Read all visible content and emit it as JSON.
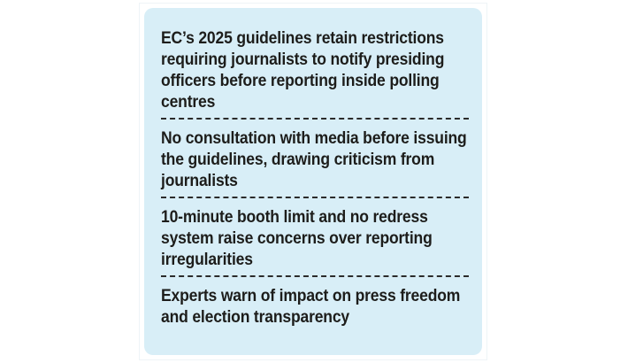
{
  "points": [
    {
      "text": "EC’s 2025 guidelines retain restrictions requiring journalists to notify presiding officers before reporting inside polling centres"
    },
    {
      "text": "No consultation with media before issuing the guidelines, drawing criticism from journalists"
    },
    {
      "text": "10-minute booth limit and no redress system raise concerns over reporting irregularities"
    },
    {
      "text": "Experts warn of impact on press freedom and election transparency"
    }
  ],
  "colors": {
    "card_background": "#d8eef7",
    "text": "#1d1d1b",
    "divider": "#2b2b2b"
  }
}
